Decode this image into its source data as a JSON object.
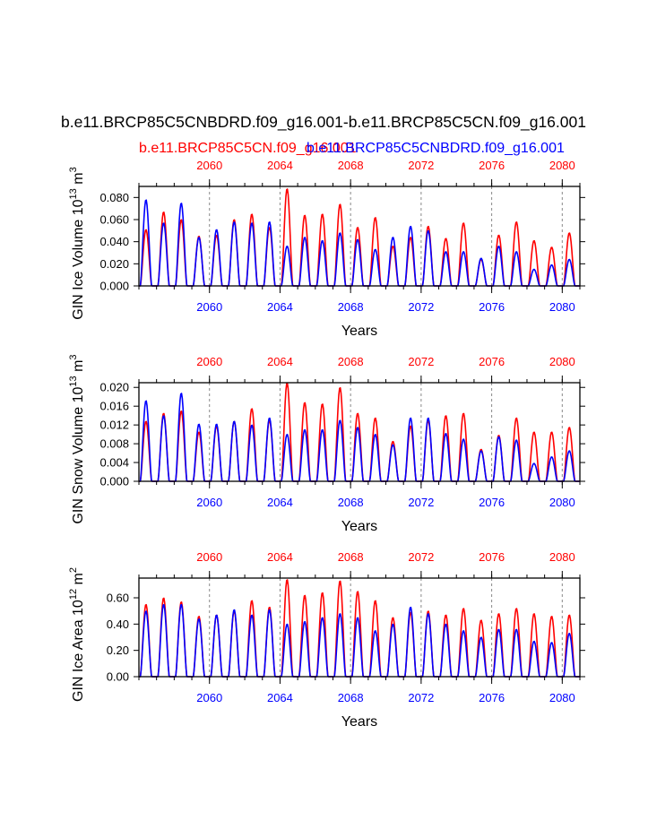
{
  "title": "b.e11.BRCP85C5CNBDRD.f09_g16.001-b.e11.BRCP85C5CN.f09_g16.001",
  "subtitle_red": "b.e11.BRCP85C5CN.f09_g16.001",
  "subtitle_blue": "b.e11.BRCP85C5CNBDRD.f09_g16.001",
  "colors": {
    "case_red": "#ff0000",
    "case_blue": "#0000ff",
    "axis": "#000000",
    "grid": "#888888"
  },
  "chart_data": [
    {
      "type": "line",
      "title": "",
      "xlabel": "Years",
      "ylabel": "GIN Ice Volume 10",
      "ylabel_exp": "13",
      "ylabel_unit": " m",
      "ylabel_unit_exp": "3",
      "x_range": [
        2056,
        2081
      ],
      "ylim": [
        0.0,
        0.09
      ],
      "yticks": [
        "0.000",
        "0.020",
        "0.040",
        "0.060",
        "0.080"
      ],
      "ytick_values": [
        0.0,
        0.02,
        0.04,
        0.06,
        0.08
      ],
      "xtick_labels": [
        "2060",
        "2064",
        "2068",
        "2072",
        "2076",
        "2080"
      ],
      "xtick_values": [
        2060,
        2064,
        2068,
        2072,
        2076,
        2080
      ],
      "series": [
        {
          "name": "b.e11.BRCP85C5CN.f09_g16.001",
          "color": "#ff0000",
          "annual_max": [
            0.051,
            0.067,
            0.06,
            0.045,
            0.046,
            0.06,
            0.065,
            0.053,
            0.088,
            0.064,
            0.065,
            0.074,
            0.053,
            0.062,
            0.036,
            0.044,
            0.054,
            0.043,
            0.057,
            0.024,
            0.046,
            0.058,
            0.041,
            0.035,
            0.048
          ]
        },
        {
          "name": "b.e11.BRCP85C5CNBDRD.f09_g16.001",
          "color": "#0000ff",
          "annual_max": [
            0.078,
            0.057,
            0.075,
            0.044,
            0.051,
            0.058,
            0.057,
            0.058,
            0.036,
            0.044,
            0.041,
            0.048,
            0.042,
            0.033,
            0.044,
            0.054,
            0.05,
            0.031,
            0.031,
            0.025,
            0.036,
            0.031,
            0.015,
            0.019,
            0.024
          ]
        }
      ]
    },
    {
      "type": "line",
      "title": "",
      "xlabel": "Years",
      "ylabel": "GIN Snow Volume 10",
      "ylabel_exp": "13",
      "ylabel_unit": " m",
      "ylabel_unit_exp": "3",
      "x_range": [
        2056,
        2081
      ],
      "ylim": [
        0.0,
        0.021
      ],
      "yticks": [
        "0.000",
        "0.004",
        "0.008",
        "0.012",
        "0.016",
        "0.020"
      ],
      "ytick_values": [
        0.0,
        0.004,
        0.008,
        0.012,
        0.016,
        0.02
      ],
      "xtick_labels": [
        "2060",
        "2064",
        "2068",
        "2072",
        "2076",
        "2080"
      ],
      "xtick_values": [
        2060,
        2064,
        2068,
        2072,
        2076,
        2080
      ],
      "series": [
        {
          "name": "b.e11.BRCP85C5CN.f09_g16.001",
          "color": "#ff0000",
          "annual_max": [
            0.0128,
            0.0145,
            0.015,
            0.0105,
            0.0118,
            0.0128,
            0.0155,
            0.013,
            0.021,
            0.0168,
            0.0165,
            0.02,
            0.0145,
            0.0135,
            0.0085,
            0.0118,
            0.013,
            0.014,
            0.0145,
            0.0068,
            0.0098,
            0.0135,
            0.0105,
            0.0105,
            0.0115
          ]
        },
        {
          "name": "b.e11.BRCP85C5CNBDRD.f09_g16.001",
          "color": "#0000ff",
          "annual_max": [
            0.0172,
            0.014,
            0.0188,
            0.0122,
            0.0122,
            0.0128,
            0.012,
            0.0135,
            0.01,
            0.011,
            0.011,
            0.013,
            0.0115,
            0.01,
            0.0078,
            0.0135,
            0.0135,
            0.0102,
            0.009,
            0.0065,
            0.0095,
            0.0088,
            0.0038,
            0.0052,
            0.0065
          ]
        }
      ]
    },
    {
      "type": "line",
      "title": "",
      "xlabel": "Years",
      "ylabel": "GIN Ice Area 10",
      "ylabel_exp": "12",
      "ylabel_unit": " m",
      "ylabel_unit_exp": "2",
      "x_range": [
        2056,
        2081
      ],
      "ylim": [
        0.0,
        0.75
      ],
      "yticks": [
        "0.00",
        "0.20",
        "0.40",
        "0.60"
      ],
      "ytick_values": [
        0.0,
        0.2,
        0.4,
        0.6
      ],
      "xtick_labels": [
        "2060",
        "2064",
        "2068",
        "2072",
        "2076",
        "2080"
      ],
      "xtick_values": [
        2060,
        2064,
        2068,
        2072,
        2076,
        2080
      ],
      "series": [
        {
          "name": "b.e11.BRCP85C5CN.f09_g16.001",
          "color": "#ff0000",
          "annual_max": [
            0.55,
            0.6,
            0.57,
            0.46,
            0.47,
            0.5,
            0.58,
            0.53,
            0.74,
            0.62,
            0.64,
            0.73,
            0.65,
            0.58,
            0.45,
            0.49,
            0.5,
            0.47,
            0.52,
            0.43,
            0.48,
            0.52,
            0.48,
            0.46,
            0.47
          ]
        },
        {
          "name": "b.e11.BRCP85C5CNBDRD.f09_g16.001",
          "color": "#0000ff",
          "annual_max": [
            0.5,
            0.55,
            0.55,
            0.44,
            0.47,
            0.51,
            0.47,
            0.51,
            0.4,
            0.42,
            0.45,
            0.48,
            0.45,
            0.35,
            0.4,
            0.53,
            0.48,
            0.4,
            0.35,
            0.3,
            0.36,
            0.36,
            0.27,
            0.26,
            0.33
          ]
        }
      ]
    }
  ]
}
